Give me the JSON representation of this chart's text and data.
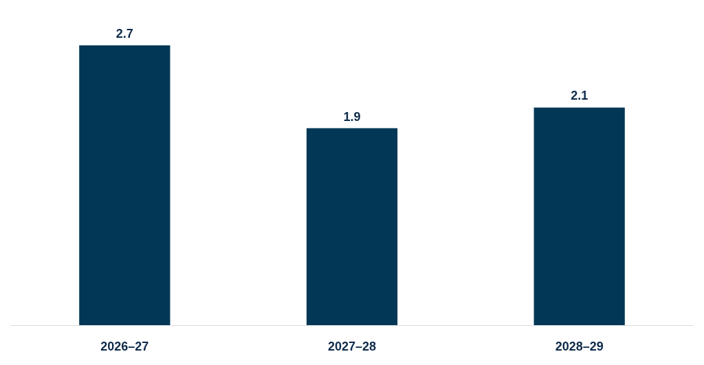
{
  "chart_data": {
    "type": "bar",
    "categories": [
      "2026–27",
      "2027–28",
      "2028–29"
    ],
    "values": [
      2.7,
      1.9,
      2.1
    ],
    "color": "#023756",
    "data_labels": true
  }
}
